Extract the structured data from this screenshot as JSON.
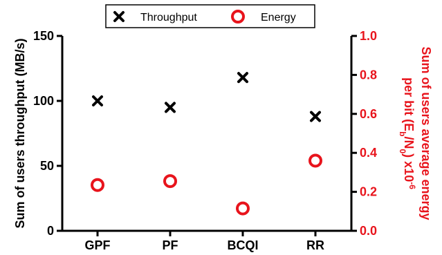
{
  "chart_data": {
    "type": "scatter",
    "categories": [
      "GPF",
      "PF",
      "BCQI",
      "RR"
    ],
    "legend": {
      "position": "top",
      "entries": [
        "Throughput",
        "Energy"
      ]
    },
    "left_axis": {
      "title": "Sum of users throughput (MB/s)",
      "ylim": [
        0,
        150
      ],
      "ticks": [
        "0",
        "50",
        "100",
        "150"
      ]
    },
    "right_axis": {
      "title_line1": "Sum of users average energy",
      "title_line2_main": "per bit (E",
      "title_line2_sub1": "b",
      "title_line2_mid": "/N",
      "title_line2_sub2": "0",
      "title_line2_end": ") x10",
      "title_line2_sup": "-6",
      "ylim": [
        0,
        1.0
      ],
      "ticks": [
        "0.0",
        "0.2",
        "0.4",
        "0.6",
        "0.8",
        "1.0"
      ],
      "color": "#e8141c"
    },
    "series": [
      {
        "name": "Throughput",
        "axis": "left",
        "marker": "x",
        "color": "#000000",
        "values": [
          100,
          95,
          118,
          88
        ]
      },
      {
        "name": "Energy",
        "axis": "right",
        "marker": "circle",
        "color": "#e8141c",
        "values": [
          0.235,
          0.255,
          0.115,
          0.36
        ]
      }
    ]
  }
}
